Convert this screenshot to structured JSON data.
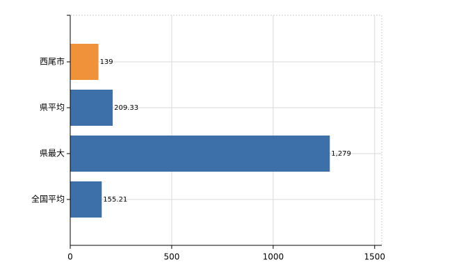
{
  "chart_data": {
    "type": "hbar",
    "categories": [
      "西尾市",
      "県平均",
      "県最大",
      "全国平均"
    ],
    "values": [
      139,
      209.33,
      1279,
      155.21
    ],
    "value_labels": [
      "139",
      "209.33",
      "1,279",
      "155.21"
    ],
    "colors": [
      "#f0923a",
      "#3d6fa9",
      "#3d6fa9",
      "#3d6fa9"
    ],
    "xlim": [
      0,
      1535
    ],
    "xticks": [
      0,
      500,
      1000,
      1500
    ],
    "grid": true
  }
}
